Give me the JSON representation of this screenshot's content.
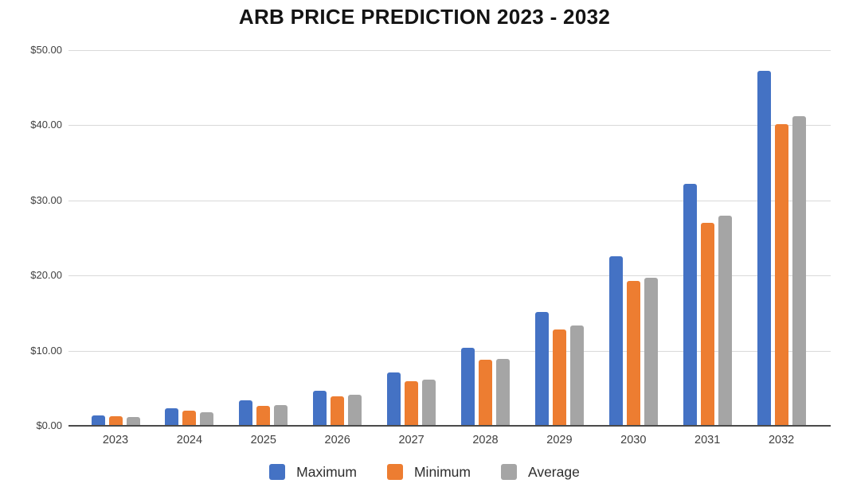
{
  "chart_data": {
    "type": "bar",
    "title": "ARB PRICE PREDICTION 2023 - 2032",
    "categories": [
      "2023",
      "2024",
      "2025",
      "2026",
      "2027",
      "2028",
      "2029",
      "2030",
      "2031",
      "2032"
    ],
    "series": [
      {
        "name": "Maximum",
        "color": "#4472C4",
        "values": [
          1.35,
          2.3,
          3.4,
          4.65,
          7.1,
          10.35,
          15.2,
          22.6,
          32.2,
          47.3
        ]
      },
      {
        "name": "Minimum",
        "color": "#ED7D31",
        "values": [
          1.3,
          2.0,
          2.7,
          3.9,
          5.9,
          8.8,
          12.8,
          19.3,
          27.0,
          40.2
        ]
      },
      {
        "name": "Average",
        "color": "#A5A5A5",
        "values": [
          1.15,
          1.8,
          2.8,
          4.1,
          6.1,
          8.9,
          13.4,
          19.7,
          28.0,
          41.2
        ]
      }
    ],
    "ylim": [
      0,
      50
    ],
    "y_ticks": [
      {
        "label": "$50.00",
        "value": 50
      },
      {
        "label": "$40.00",
        "value": 40
      },
      {
        "label": "$30.00",
        "value": 30
      },
      {
        "label": "$20.00",
        "value": 20
      },
      {
        "label": "$10.00",
        "value": 10
      },
      {
        "label": "$0.00",
        "value": 0
      }
    ],
    "grid": "horizontal",
    "legend_position": "bottom",
    "xlabel": "",
    "ylabel": ""
  },
  "colors": {
    "gridline": "#D9D9D9",
    "axis": "#4A4A4A",
    "tick_text": "#3F3F3F",
    "title": "#141414",
    "legend_text": "#2E2E2E"
  }
}
